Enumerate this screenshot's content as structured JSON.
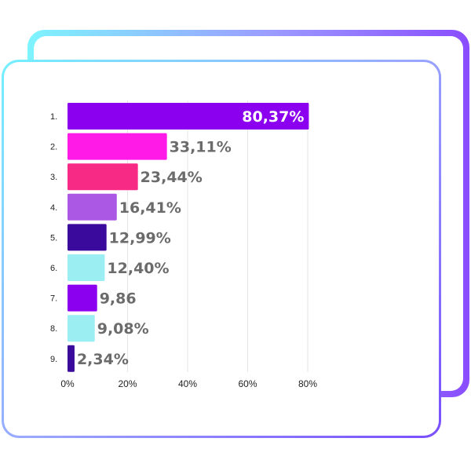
{
  "chart_data": {
    "type": "bar",
    "orientation": "horizontal",
    "categories": [
      "1.",
      "2.",
      "3.",
      "4.",
      "5.",
      "6.",
      "7.",
      "8.",
      "9."
    ],
    "values": [
      80.37,
      33.11,
      23.44,
      16.41,
      12.99,
      12.4,
      9.86,
      9.08,
      2.34
    ],
    "value_labels": [
      "80,37%",
      "33,11%",
      "23,44%",
      "16,41%",
      "12,99%",
      "12,40%",
      "9,86",
      "9,08%",
      "2,34%"
    ],
    "bar_colors": [
      "#8c00f0",
      "#ff1ae8",
      "#f72a86",
      "#ab58e4",
      "#3a0a9c",
      "#9beef2",
      "#8c00f0",
      "#9beef2",
      "#3a0a9c"
    ],
    "xlim": [
      0,
      80
    ],
    "xticks": [
      0,
      20,
      40,
      60,
      80
    ],
    "xtick_labels": [
      "0%",
      "20%",
      "40%",
      "60%",
      "80%"
    ],
    "grid": true,
    "title": "",
    "xlabel": "",
    "ylabel": ""
  }
}
